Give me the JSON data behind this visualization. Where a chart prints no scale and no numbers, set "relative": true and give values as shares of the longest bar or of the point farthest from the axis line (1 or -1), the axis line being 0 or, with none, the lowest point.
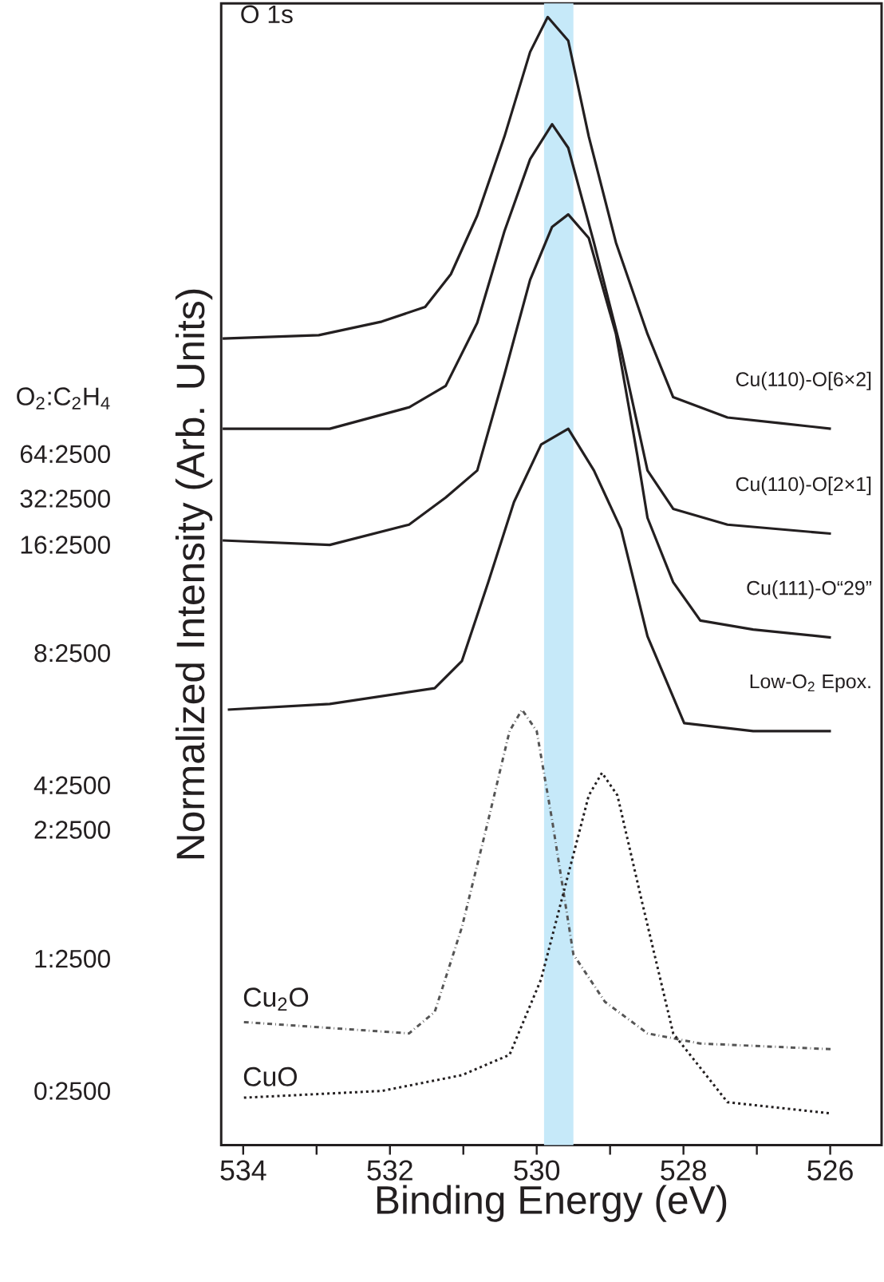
{
  "chart_data": {
    "type": "line",
    "title": "O 1s",
    "xlabel": "Binding Energy (eV)",
    "ylabel": "Normalized Intensity (Arb. Units)",
    "relative": true,
    "tick_labels": "x",
    "xlim": [
      534.3,
      525.3
    ],
    "xticks": [
      534,
      {
        "value": 533,
        "label": null
      },
      532,
      {
        "value": 531,
        "label": null
      },
      530,
      {
        "value": 529,
        "label": null
      },
      528,
      {
        "value": 527,
        "label": null
      },
      526
    ],
    "bands": [
      {
        "axis": "x",
        "from": 529.9,
        "to": 529.5,
        "color": "#c6e9f9"
      }
    ],
    "annotations": [
      "O$_{2}$:C$_{2}$H$_{4}$",
      "64:2500",
      "32:2500",
      "16:2500",
      "8:2500",
      "4:2500",
      "2:2500",
      "1:2500",
      "0:2500"
    ],
    "series": [
      {
        "name": "Cu(110)-O[6×2]",
        "color": "#231f20",
        "line_style": "solid",
        "x": [
          534.28,
          532.97,
          532.11,
          531.52,
          531.17,
          530.81,
          530.44,
          530.09,
          529.85,
          529.57,
          529.29,
          528.92,
          528.49,
          528.14,
          527.4,
          526.68,
          525.99
        ],
        "values": [
          0.715,
          0.718,
          0.73,
          0.743,
          0.772,
          0.824,
          0.894,
          0.969,
          1.0,
          0.979,
          0.894,
          0.8,
          0.719,
          0.663,
          0.645,
          0.64,
          0.635
        ]
      },
      {
        "name": "Cu(110)-O[2×1]",
        "color": "#231f20",
        "line_style": "solid",
        "x": [
          534.28,
          532.82,
          531.74,
          531.24,
          530.81,
          530.44,
          530.09,
          529.79,
          529.57,
          529.22,
          528.85,
          528.49,
          528.14,
          527.4,
          525.99
        ],
        "values": [
          0.635,
          0.635,
          0.654,
          0.673,
          0.729,
          0.81,
          0.874,
          0.905,
          0.884,
          0.8,
          0.705,
          0.598,
          0.564,
          0.55,
          0.542
        ]
      },
      {
        "name": "Cu(111)-O“29”",
        "color": "#231f20",
        "line_style": "solid",
        "x": [
          534.28,
          532.82,
          531.74,
          531.24,
          530.81,
          530.44,
          530.09,
          529.79,
          529.57,
          529.29,
          528.92,
          528.63,
          528.49,
          528.14,
          527.77,
          527.05,
          525.99
        ],
        "values": [
          0.536,
          0.532,
          0.55,
          0.574,
          0.598,
          0.683,
          0.767,
          0.814,
          0.825,
          0.804,
          0.719,
          0.612,
          0.556,
          0.499,
          0.465,
          0.457,
          0.45
        ]
      },
      {
        "name": "Low-O$_{2}$ Epox.",
        "color": "#231f20",
        "line_style": "solid",
        "x": [
          534.21,
          532.82,
          531.39,
          531.02,
          530.66,
          530.31,
          529.94,
          529.57,
          529.22,
          528.85,
          528.49,
          527.99,
          527.05,
          525.99
        ],
        "values": [
          0.386,
          0.391,
          0.405,
          0.429,
          0.499,
          0.57,
          0.621,
          0.635,
          0.598,
          0.546,
          0.451,
          0.374,
          0.367,
          0.367
        ]
      },
      {
        "name": "Cu$_{2}$O",
        "color": "#555555",
        "line_style": "dashdot",
        "x": [
          533.99,
          531.74,
          531.39,
          531.02,
          530.66,
          530.37,
          530.2,
          530.0,
          529.79,
          529.5,
          529.07,
          528.49,
          527.77,
          525.99
        ],
        "values": [
          0.109,
          0.099,
          0.118,
          0.193,
          0.288,
          0.367,
          0.386,
          0.367,
          0.288,
          0.169,
          0.127,
          0.099,
          0.09,
          0.085
        ]
      },
      {
        "name": "CuO",
        "color": "#231f20",
        "line_style": "dotted",
        "x": [
          533.99,
          532.11,
          531.02,
          530.37,
          529.94,
          529.57,
          529.29,
          529.11,
          528.9,
          528.57,
          528.14,
          527.4,
          525.99
        ],
        "values": [
          0.042,
          0.048,
          0.062,
          0.08,
          0.147,
          0.24,
          0.31,
          0.33,
          0.31,
          0.217,
          0.099,
          0.038,
          0.028
        ]
      }
    ]
  }
}
